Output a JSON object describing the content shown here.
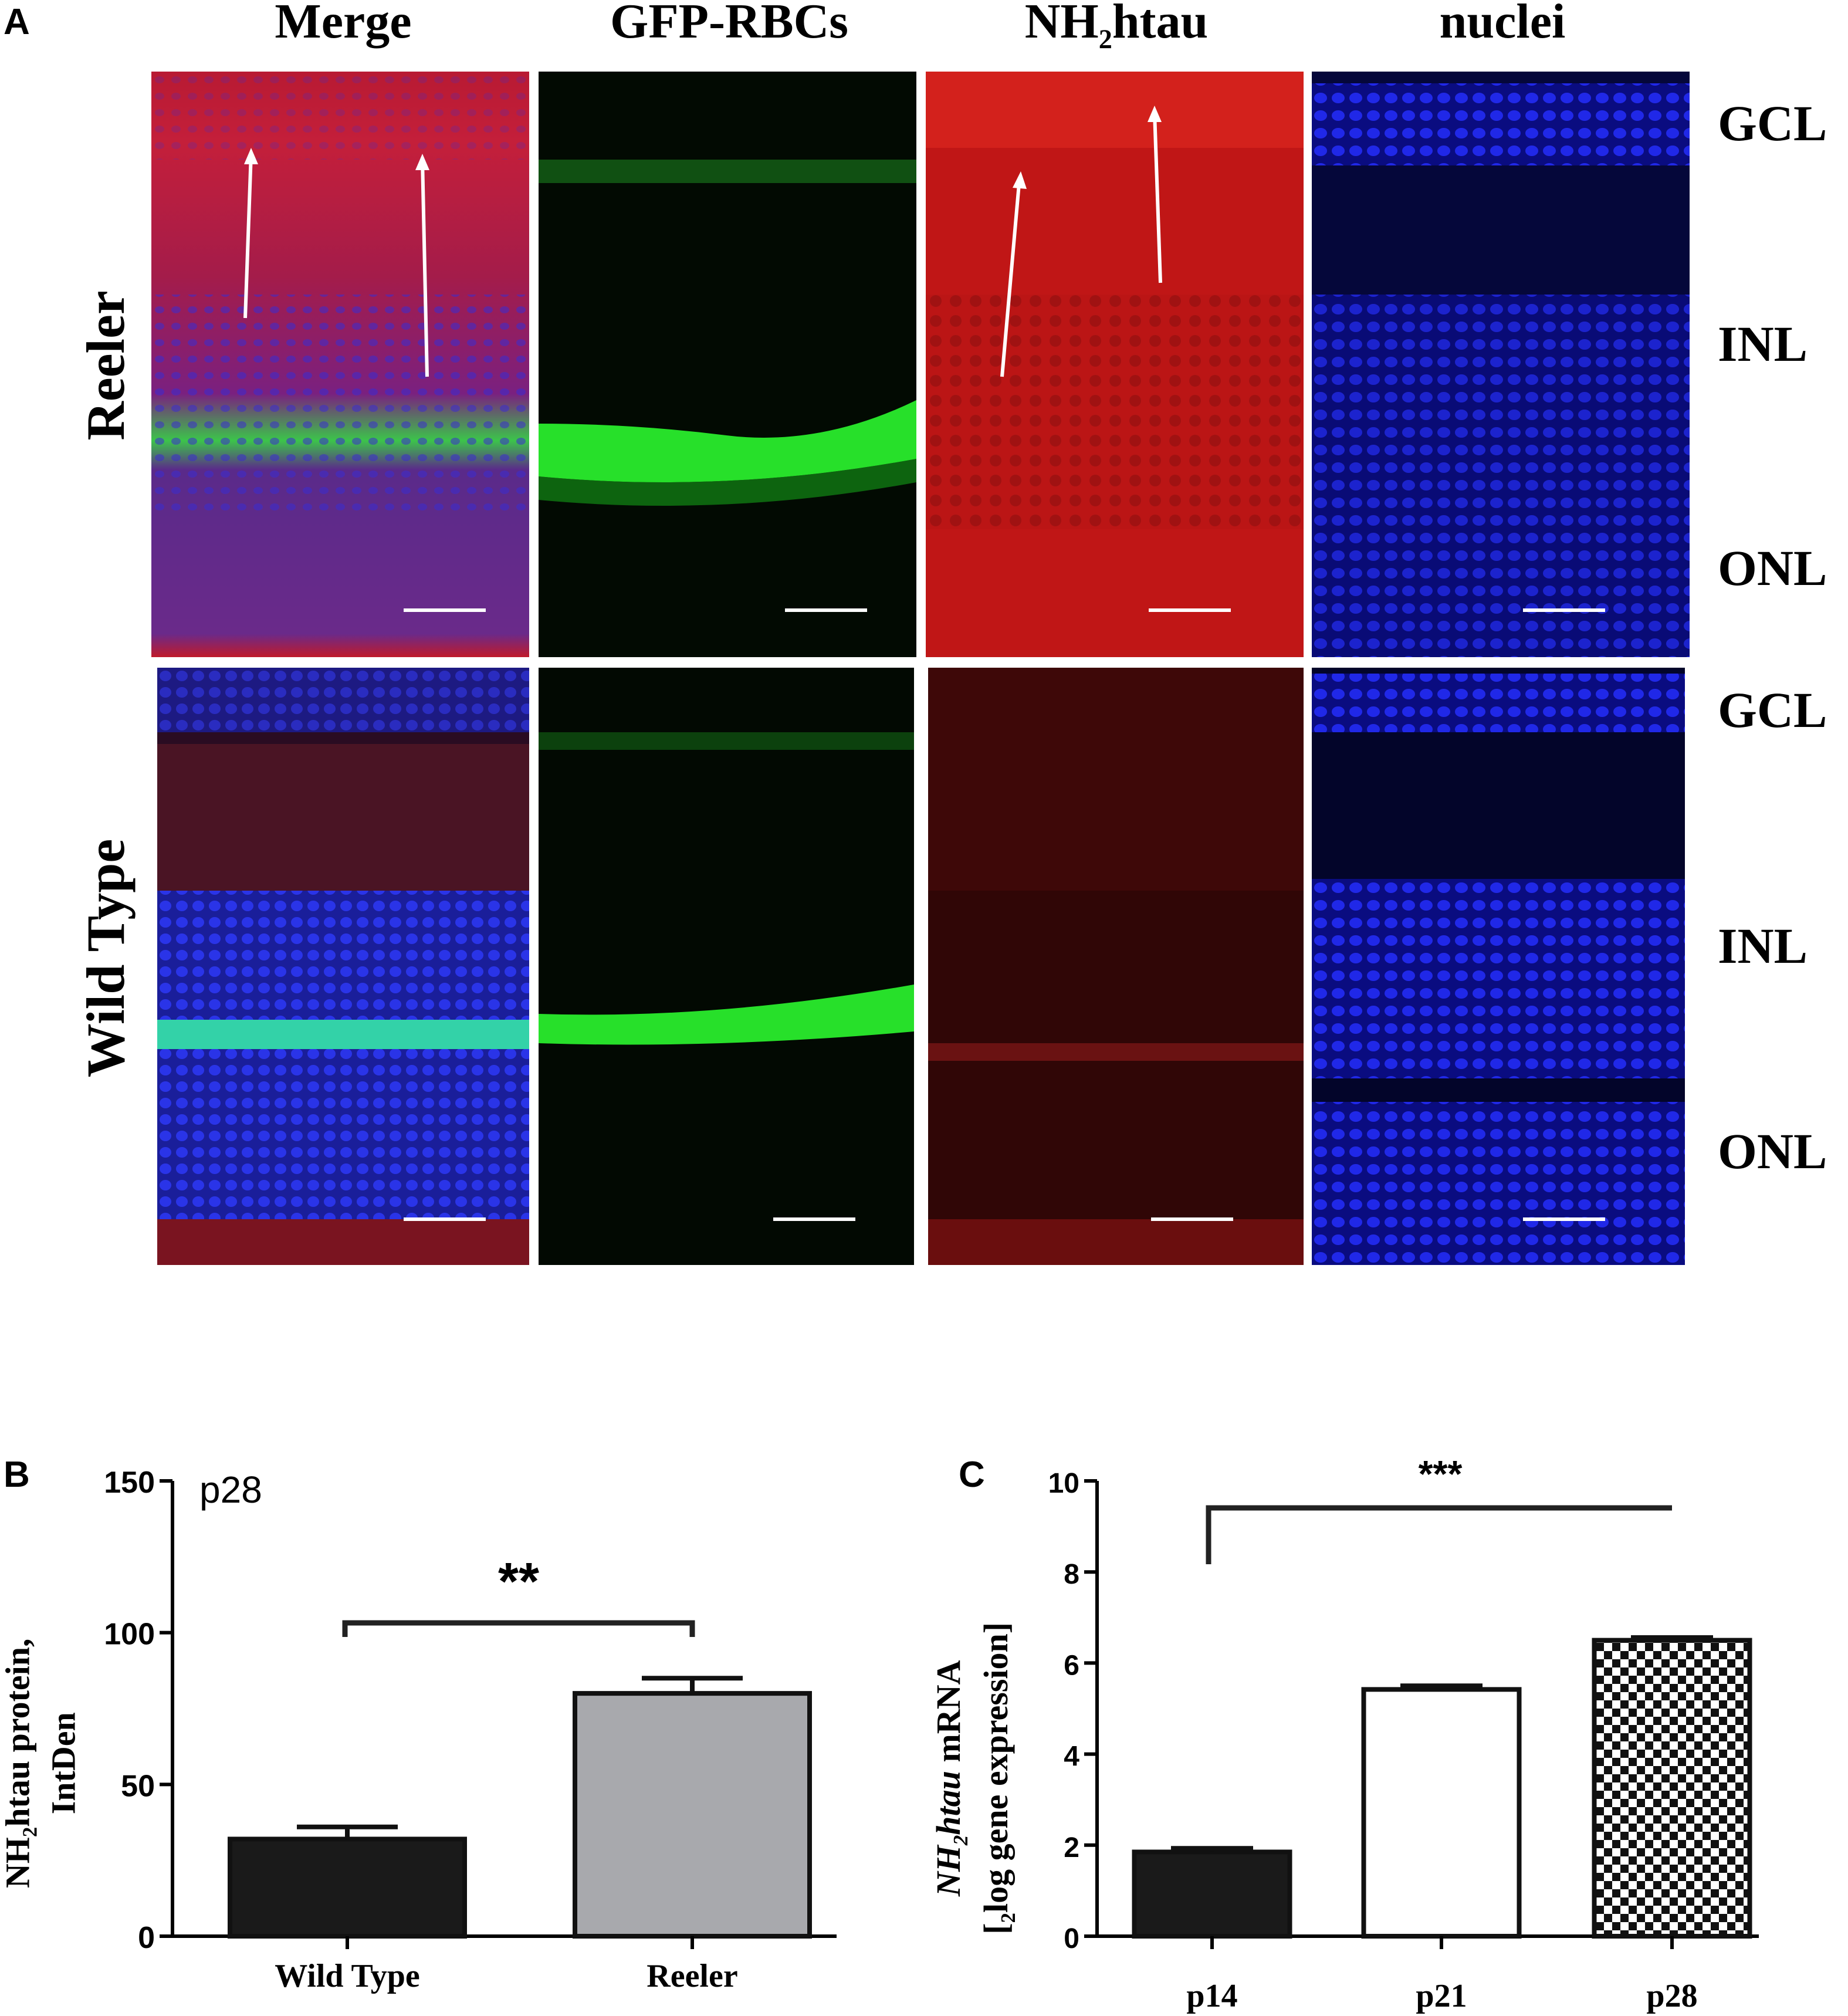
{
  "panel_a": {
    "letter": "A",
    "column_headers": [
      "Merge",
      "GFP-RBCs",
      "NH",
      "htau",
      "2",
      "nuclei"
    ],
    "row_labels": {
      "top": "Reeler",
      "bottom": "Wild Type"
    },
    "layers_top": [
      "GCL",
      "INL",
      "ONL"
    ],
    "layers_bottom": [
      "GCL",
      "INL",
      "ONL"
    ],
    "colors": {
      "merge_red": "#c8202a",
      "gfp_green": "#25e02a",
      "red_channel": "#d01818",
      "nuclei_blue": "#1b22e0",
      "background": "#000000"
    }
  },
  "chart_data": [
    {
      "type": "bar",
      "panel_letter": "B",
      "inset_label": "p28",
      "categories": [
        "Wild Type",
        "Reeler"
      ],
      "values": [
        32,
        80
      ],
      "errors": [
        4,
        5
      ],
      "colors": [
        "#1a1a1a",
        "#a8a9ad"
      ],
      "ylabel": "NH2htau protein, IntDen",
      "ylabel_parts": {
        "a": "NH",
        "sub": "2",
        "b": "htau protein,",
        "line2": "IntDen"
      },
      "ylim": [
        0,
        150
      ],
      "yticks": [
        "0",
        "50",
        "100",
        "150"
      ],
      "significance": "**",
      "grid": false
    },
    {
      "type": "bar",
      "panel_letter": "C",
      "categories": [
        "p14",
        "p21",
        "p28"
      ],
      "values": [
        1.85,
        5.42,
        6.5
      ],
      "errors": [
        0.08,
        0.08,
        0.06
      ],
      "fills": [
        "solid-black",
        "white",
        "checkerboard"
      ],
      "ylabel": "NH2htau mRNA [2log gene expression]",
      "ylabel_parts": {
        "a": "NH",
        "sub": "2",
        "b": "htau",
        "c": " mRNA",
        "line2a": "[",
        "line2sub": "2",
        "line2b": "log gene expression]"
      },
      "ylim": [
        0,
        10
      ],
      "yticks": [
        "0",
        "2",
        "4",
        "6",
        "8",
        "10"
      ],
      "significance": "***",
      "grid": false
    }
  ]
}
